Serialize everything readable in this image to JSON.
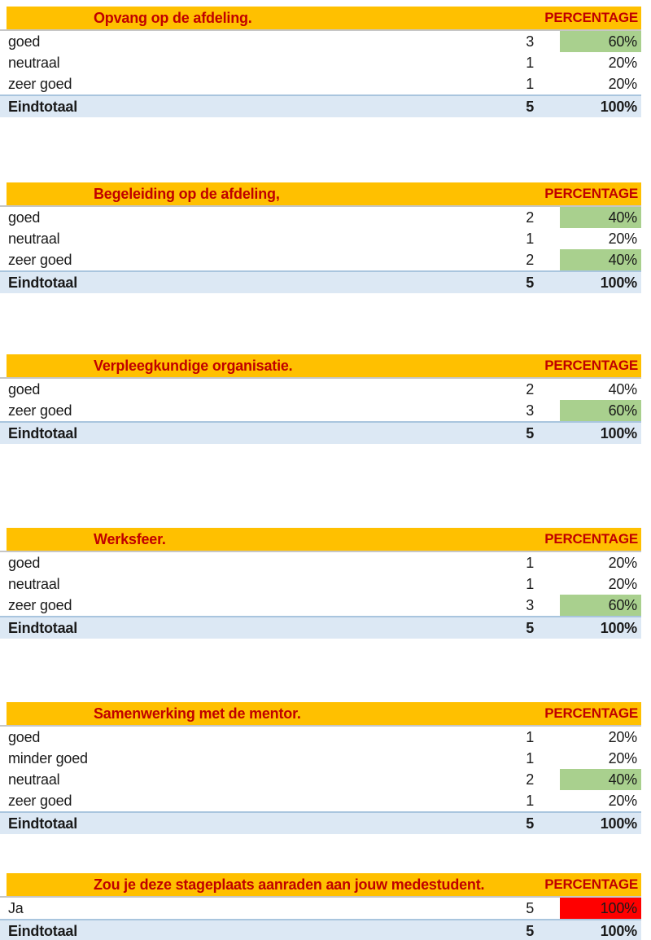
{
  "document": {
    "language": "nl",
    "kind": "stage-evaluatie pivot-tabellen"
  },
  "labels": {
    "percentage": "PERCENTAGE"
  },
  "colors": {
    "header_bg": "#FFC000",
    "header_text": "#C00000",
    "highlight_green": "#A9D08E",
    "highlight_red": "#FF0000",
    "total_row_bg": "#DCE8F4",
    "total_row_border": "#A9C5DE",
    "header_underline": "#C6C6C6",
    "body_text": "#1A1A1A"
  },
  "tables": [
    {
      "title": "Opvang op de afdeling.",
      "rows": [
        {
          "label": "goed",
          "count": "3",
          "pct": "60%",
          "highlight": "green"
        },
        {
          "label": "neutraal",
          "count": "1",
          "pct": "20%",
          "highlight": "none"
        },
        {
          "label": "zeer goed",
          "count": "1",
          "pct": "20%",
          "highlight": "none"
        }
      ],
      "total": {
        "label": "Eindtotaal",
        "count": "5",
        "pct": "100%"
      }
    },
    {
      "title": "Begeleiding op de afdeling,",
      "rows": [
        {
          "label": "goed",
          "count": "2",
          "pct": "40%",
          "highlight": "green"
        },
        {
          "label": "neutraal",
          "count": "1",
          "pct": "20%",
          "highlight": "none"
        },
        {
          "label": "zeer goed",
          "count": "2",
          "pct": "40%",
          "highlight": "green"
        }
      ],
      "total": {
        "label": "Eindtotaal",
        "count": "5",
        "pct": "100%"
      }
    },
    {
      "title": "Verpleegkundige organisatie.",
      "rows": [
        {
          "label": "goed",
          "count": "2",
          "pct": "40%",
          "highlight": "none"
        },
        {
          "label": "zeer goed",
          "count": "3",
          "pct": "60%",
          "highlight": "green"
        }
      ],
      "total": {
        "label": "Eindtotaal",
        "count": "5",
        "pct": "100%"
      }
    },
    {
      "title": "Werksfeer.",
      "rows": [
        {
          "label": "goed",
          "count": "1",
          "pct": "20%",
          "highlight": "none"
        },
        {
          "label": "neutraal",
          "count": "1",
          "pct": "20%",
          "highlight": "none"
        },
        {
          "label": "zeer goed",
          "count": "3",
          "pct": "60%",
          "highlight": "green"
        }
      ],
      "total": {
        "label": "Eindtotaal",
        "count": "5",
        "pct": "100%"
      }
    },
    {
      "title": "Samenwerking met de mentor.",
      "rows": [
        {
          "label": "goed",
          "count": "1",
          "pct": "20%",
          "highlight": "none"
        },
        {
          "label": "minder goed",
          "count": "1",
          "pct": "20%",
          "highlight": "none"
        },
        {
          "label": "neutraal",
          "count": "2",
          "pct": "40%",
          "highlight": "green"
        },
        {
          "label": "zeer goed",
          "count": "1",
          "pct": "20%",
          "highlight": "none"
        }
      ],
      "total": {
        "label": "Eindtotaal",
        "count": "5",
        "pct": "100%"
      }
    },
    {
      "title": "Zou je deze stageplaats aanraden aan jouw medestudent.",
      "rows": [
        {
          "label": "Ja",
          "count": "5",
          "pct": "100%",
          "highlight": "red"
        }
      ],
      "total": {
        "label": "Eindtotaal",
        "count": "5",
        "pct": "100%"
      }
    }
  ]
}
